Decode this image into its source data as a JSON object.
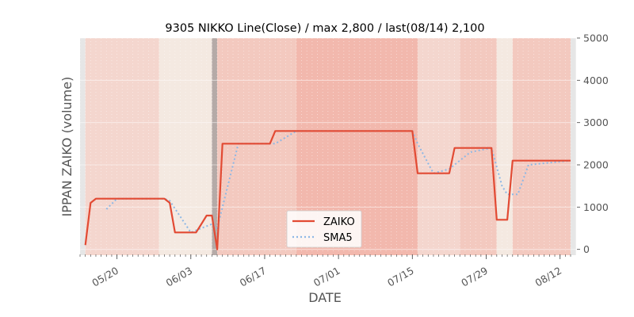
{
  "chart_data": {
    "type": "line",
    "title": "9305 NIKKO Line(Close) / max 2,800 / last(08/14) 2,100",
    "xlabel": "DATE",
    "ylabel": "IPPAN ZAIKO (volume)",
    "ylim": [
      -100,
      5000
    ],
    "yticks": [
      0,
      1000,
      2000,
      3000,
      4000,
      5000
    ],
    "yaxis_side": "right",
    "grid": true,
    "legend_position": "lower-center",
    "xlim": [
      "05/13",
      "08/14"
    ],
    "xticks": [
      {
        "label": "05/20",
        "date": "05/20"
      },
      {
        "label": "06/03",
        "date": "06/03"
      },
      {
        "label": "06/17",
        "date": "06/17"
      },
      {
        "label": "07/01",
        "date": "07/01"
      },
      {
        "label": "07/15",
        "date": "07/15"
      },
      {
        "label": "07/29",
        "date": "07/29"
      },
      {
        "label": "08/12",
        "date": "08/12"
      }
    ],
    "series": [
      {
        "name": "ZAIKO",
        "color": "#e24a33",
        "style": "solid",
        "points": [
          [
            "05/14",
            100
          ],
          [
            "05/15",
            1100
          ],
          [
            "05/16",
            1200
          ],
          [
            "05/17",
            1200
          ],
          [
            "05/20",
            1200
          ],
          [
            "05/21",
            1200
          ],
          [
            "05/22",
            1200
          ],
          [
            "05/23",
            1200
          ],
          [
            "05/24",
            1200
          ],
          [
            "05/27",
            1200
          ],
          [
            "05/28",
            1200
          ],
          [
            "05/29",
            1200
          ],
          [
            "05/30",
            1100
          ],
          [
            "05/31",
            400
          ],
          [
            "06/03",
            400
          ],
          [
            "06/04",
            400
          ],
          [
            "06/05",
            600
          ],
          [
            "06/06",
            800
          ],
          [
            "06/07",
            800
          ],
          [
            "06/08",
            0
          ],
          [
            "06/09",
            2500
          ],
          [
            "06/10",
            2500
          ],
          [
            "06/11",
            2500
          ],
          [
            "06/12",
            2500
          ],
          [
            "06/13",
            2500
          ],
          [
            "06/14",
            2500
          ],
          [
            "06/17",
            2500
          ],
          [
            "06/18",
            2500
          ],
          [
            "06/19",
            2800
          ],
          [
            "06/20",
            2800
          ],
          [
            "06/21",
            2800
          ],
          [
            "06/24",
            2800
          ],
          [
            "07/05",
            2800
          ],
          [
            "07/12",
            2800
          ],
          [
            "07/15",
            2800
          ],
          [
            "07/16",
            1800
          ],
          [
            "07/17",
            1800
          ],
          [
            "07/18",
            1800
          ],
          [
            "07/19",
            1800
          ],
          [
            "07/22",
            1800
          ],
          [
            "07/23",
            2400
          ],
          [
            "07/24",
            2400
          ],
          [
            "07/25",
            2400
          ],
          [
            "07/26",
            2400
          ],
          [
            "07/29",
            2400
          ],
          [
            "07/30",
            2400
          ],
          [
            "07/31",
            700
          ],
          [
            "08/01",
            700
          ],
          [
            "08/02",
            700
          ],
          [
            "08/03",
            2100
          ],
          [
            "08/05",
            2100
          ],
          [
            "08/14",
            2100
          ]
        ]
      },
      {
        "name": "SMA5",
        "color": "#8eb8e5",
        "style": "dotted",
        "points": [
          [
            "05/18",
            950
          ],
          [
            "05/20",
            1200
          ],
          [
            "05/29",
            1200
          ],
          [
            "05/30",
            1150
          ],
          [
            "06/03",
            400
          ],
          [
            "06/07",
            600
          ],
          [
            "06/08",
            500
          ],
          [
            "06/12",
            2500
          ],
          [
            "06/19",
            2500
          ],
          [
            "06/23",
            2800
          ],
          [
            "07/15",
            2800
          ],
          [
            "07/16",
            2500
          ],
          [
            "07/19",
            1800
          ],
          [
            "07/22",
            1900
          ],
          [
            "07/26",
            2300
          ],
          [
            "07/30",
            2400
          ],
          [
            "08/01",
            1500
          ],
          [
            "08/02",
            1300
          ],
          [
            "08/04",
            1300
          ],
          [
            "08/06",
            2000
          ],
          [
            "08/14",
            2100
          ]
        ]
      }
    ],
    "background_bands": [
      {
        "from": "05/13",
        "to": "05/14",
        "color": "#e6e6e6"
      },
      {
        "from": "05/14",
        "to": "05/28",
        "color": "#f4d6ce"
      },
      {
        "from": "05/28",
        "to": "06/07",
        "color": "#f4e9e1"
      },
      {
        "from": "06/07",
        "to": "06/08",
        "color": "#b5aaa7"
      },
      {
        "from": "06/08",
        "to": "06/23",
        "color": "#f3c9bf"
      },
      {
        "from": "06/23",
        "to": "07/16",
        "color": "#f2b8ad"
      },
      {
        "from": "07/16",
        "to": "07/24",
        "color": "#f4d6ce"
      },
      {
        "from": "07/24",
        "to": "07/31",
        "color": "#f3c9bf"
      },
      {
        "from": "07/31",
        "to": "08/03",
        "color": "#f4e9e1"
      },
      {
        "from": "08/03",
        "to": "08/14",
        "color": "#f3c9bf"
      },
      {
        "from": "08/14",
        "to": "08/15",
        "color": "#e6e6e6"
      }
    ]
  }
}
